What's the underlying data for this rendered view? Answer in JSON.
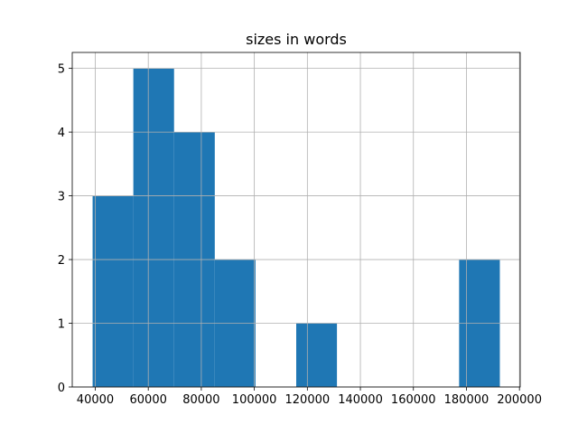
{
  "chart_data": {
    "type": "histogram",
    "title": "sizes in words",
    "bins": [
      39000,
      54360,
      69720,
      85080,
      100440,
      115800,
      131160,
      146520,
      161880,
      177240,
      192600
    ],
    "values": [
      3,
      5,
      4,
      2,
      0,
      1,
      0,
      0,
      0,
      2
    ],
    "color": "#1f77b4",
    "xlim": [
      31320,
      200280
    ],
    "xticks": [
      40000,
      60000,
      80000,
      100000,
      120000,
      140000,
      160000,
      180000,
      200000
    ],
    "ylim": [
      0,
      5.25
    ],
    "yticks": [
      0,
      1,
      2,
      3,
      4,
      5
    ],
    "grid": true
  }
}
